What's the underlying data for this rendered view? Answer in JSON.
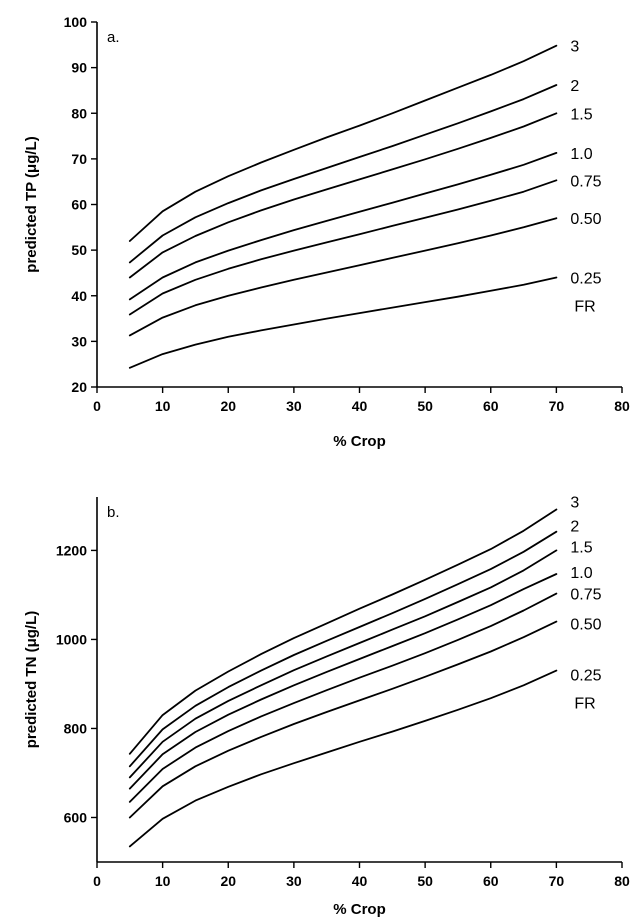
{
  "chart_data": [
    {
      "type": "line",
      "panel_label": "a.",
      "xlabel": "% Crop",
      "ylabel": "predicted TP (μg/L)",
      "xlim": [
        0,
        80
      ],
      "ylim": [
        20,
        100
      ],
      "xticks": [
        0,
        10,
        20,
        30,
        40,
        50,
        60,
        70,
        80
      ],
      "yticks": [
        20,
        30,
        40,
        50,
        60,
        70,
        80,
        90,
        100
      ],
      "grid": false,
      "x": [
        5,
        10,
        15,
        20,
        25,
        30,
        35,
        40,
        45,
        50,
        55,
        60,
        65,
        70
      ],
      "series": [
        {
          "name": "3",
          "values": [
            52,
            58.5,
            62.8,
            66.2,
            69.2,
            72,
            74.7,
            77.3,
            80,
            82.8,
            85.6,
            88.4,
            91.4,
            94.8
          ]
        },
        {
          "name": "2",
          "values": [
            47.3,
            53.2,
            57.2,
            60.3,
            63.1,
            65.6,
            68,
            70.4,
            72.8,
            75.3,
            77.8,
            80.4,
            83.1,
            86.2
          ]
        },
        {
          "name": "1.5",
          "values": [
            44,
            49.5,
            53.1,
            56.1,
            58.7,
            61.1,
            63.3,
            65.5,
            67.7,
            69.9,
            72.2,
            74.6,
            77.1,
            80
          ]
        },
        {
          "name": "1.0",
          "values": [
            39.2,
            44,
            47.3,
            49.9,
            52.2,
            54.4,
            56.4,
            58.4,
            60.4,
            62.4,
            64.4,
            66.5,
            68.7,
            71.3
          ]
        },
        {
          "name": "0.75",
          "values": [
            35.9,
            40.5,
            43.5,
            45.9,
            48,
            49.9,
            51.7,
            53.5,
            55.3,
            57.1,
            58.9,
            60.8,
            62.8,
            65.3
          ]
        },
        {
          "name": "0.50",
          "values": [
            31.3,
            35.2,
            37.9,
            40,
            41.8,
            43.5,
            45.1,
            46.7,
            48.3,
            49.9,
            51.5,
            53.2,
            55,
            57
          ]
        },
        {
          "name": "0.25",
          "values": [
            24.2,
            27.2,
            29.3,
            31,
            32.4,
            33.7,
            35,
            36.2,
            37.4,
            38.6,
            39.8,
            41.1,
            42.4,
            44
          ]
        }
      ],
      "extra_label": "FR"
    },
    {
      "type": "line",
      "panel_label": "b.",
      "xlabel": "% Crop",
      "ylabel": "predicted TN (μg/L)",
      "xlim": [
        0,
        80
      ],
      "ylim": [
        500,
        1320
      ],
      "xticks": [
        0,
        10,
        20,
        30,
        40,
        50,
        60,
        70,
        80
      ],
      "yticks": [
        600,
        800,
        1000,
        1200
      ],
      "grid": false,
      "x": [
        5,
        10,
        15,
        20,
        25,
        30,
        35,
        40,
        45,
        50,
        55,
        60,
        65,
        70
      ],
      "series": [
        {
          "name": "3",
          "values": [
            743,
            830,
            885,
            928,
            967,
            1003,
            1036,
            1069,
            1101,
            1134,
            1168,
            1203,
            1244,
            1292
          ]
        },
        {
          "name": "2",
          "values": [
            715,
            798,
            851,
            893,
            930,
            965,
            997,
            1028,
            1059,
            1091,
            1124,
            1158,
            1197,
            1242
          ]
        },
        {
          "name": "1.5",
          "values": [
            690,
            770,
            822,
            862,
            897,
            931,
            962,
            992,
            1022,
            1052,
            1084,
            1117,
            1155,
            1200
          ]
        },
        {
          "name": "1.0",
          "values": [
            665,
            742,
            792,
            831,
            865,
            897,
            927,
            956,
            985,
            1014,
            1045,
            1077,
            1113,
            1147
          ]
        },
        {
          "name": "0.75",
          "values": [
            635,
            709,
            757,
            794,
            827,
            857,
            886,
            914,
            941,
            969,
            999,
            1030,
            1065,
            1103
          ]
        },
        {
          "name": "0.50",
          "values": [
            600,
            670,
            715,
            750,
            781,
            810,
            837,
            863,
            889,
            916,
            944,
            973,
            1005,
            1040
          ]
        },
        {
          "name": "0.25",
          "values": [
            535,
            597,
            638,
            669,
            697,
            722,
            746,
            770,
            793,
            817,
            842,
            868,
            897,
            930
          ]
        }
      ],
      "extra_label": "FR"
    }
  ]
}
